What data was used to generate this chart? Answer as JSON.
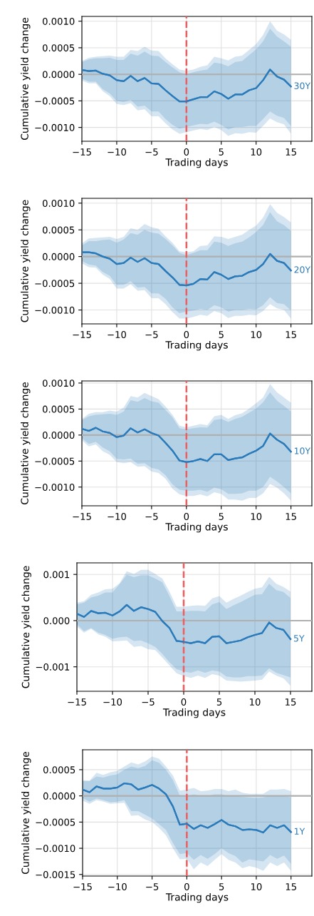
{
  "chart_data": [
    {
      "type": "line",
      "xlabel": "Trading days",
      "ylabel": "Cumulative yield change",
      "x": [
        -15,
        -14,
        -13,
        -12,
        -11,
        -10,
        -9,
        -8,
        -7,
        -6,
        -5,
        -4,
        -3,
        -2,
        -1,
        0,
        1,
        2,
        3,
        4,
        5,
        6,
        7,
        8,
        9,
        10,
        11,
        12,
        13,
        14,
        15
      ],
      "xlim": [
        -15,
        18
      ],
      "xticks": [
        {
          "value": -15,
          "label": "−15"
        },
        {
          "value": -10,
          "label": "−10"
        },
        {
          "value": -5,
          "label": "−5"
        },
        0,
        5,
        10,
        15
      ],
      "ylim": [
        -0.00126,
        0.00109
      ],
      "yticks": [
        {
          "value": -0.001,
          "label": "−0.0010"
        },
        {
          "value": -0.0005,
          "label": "−0.0005"
        },
        {
          "value": 0,
          "label": "0.0000"
        },
        {
          "value": 0.0005,
          "label": "0.0005"
        },
        {
          "value": 0.001,
          "label": "0.0010"
        }
      ],
      "grid": true,
      "ref_lines": [
        {
          "axis": "y",
          "value": 0,
          "color": "#b0b0b0",
          "line_style": "solid"
        },
        {
          "axis": "x",
          "value": 0,
          "color": "#f25c5c",
          "line_style": "dashed"
        }
      ],
      "series": [
        {
          "type": "line",
          "color": "#2b7bba",
          "lower": [
            -0.00012,
            -0.00017,
            -0.00017,
            -0.00032,
            -0.00041,
            -0.00056,
            -0.00058,
            -0.00054,
            -0.00068,
            -0.00066,
            -0.00079,
            -0.00079,
            -0.00092,
            -0.00104,
            -0.00112,
            -0.00109,
            -0.00106,
            -0.00103,
            -0.00105,
            -0.00099,
            -0.00105,
            -0.00116,
            -0.00111,
            -0.00112,
            -0.00109,
            -0.0011,
            -0.00097,
            -0.00083,
            -0.0009,
            -0.00094,
            -0.00112
          ],
          "upper": [
            0.00025,
            0.00031,
            0.00033,
            0.00034,
            0.00035,
            0.00033,
            0.00033,
            0.00046,
            0.00044,
            0.00052,
            0.00045,
            0.00044,
            0.0003,
            0.00019,
            9e-05,
            7e-05,
            9e-05,
            0.00014,
            0.00017,
            0.00033,
            0.0003,
            0.00026,
            0.00033,
            0.00035,
            0.00046,
            0.00057,
            0.00074,
            0.001,
            0.00082,
            0.00075,
            0.00065
          ],
          "values": [
            8e-05,
            6e-05,
            7e-05,
            1e-05,
            -2e-05,
            -0.00011,
            -0.00013,
            -3e-05,
            -0.00013,
            -7e-05,
            -0.00017,
            -0.00018,
            -0.0003,
            -0.00041,
            -0.00051,
            -0.00051,
            -0.00047,
            -0.00043,
            -0.00043,
            -0.00032,
            -0.00037,
            -0.00046,
            -0.00038,
            -0.00038,
            -0.0003,
            -0.00026,
            -0.00011,
            9e-05,
            -4e-05,
            -0.0001,
            -0.00023
          ]
        },
        {
          "type": "line",
          "name": "30Y",
          "color": "#2b7bba",
          "lower": [
            -8e-05,
            -0.00014,
            -0.00014,
            -0.00028,
            -0.00036,
            -0.0005,
            -0.00052,
            -0.00048,
            -0.00061,
            -0.00059,
            -0.0007,
            -0.0007,
            -0.00084,
            -0.00095,
            -0.00102,
            -0.00099,
            -0.00096,
            -0.00093,
            -0.00094,
            -0.00089,
            -0.00095,
            -0.00104,
            -0.00099,
            -0.00099,
            -0.00097,
            -0.00097,
            -0.00084,
            -0.0007,
            -0.00078,
            -0.00082,
            -0.00097
          ],
          "upper": [
            0.00023,
            0.00028,
            0.0003,
            0.0003,
            0.00031,
            0.00027,
            0.00027,
            0.00039,
            0.00035,
            0.00043,
            0.00035,
            0.00034,
            0.00023,
            0.00013,
            4e-05,
            0.0,
            4e-05,
            7e-05,
            9e-05,
            0.00022,
            0.0002,
            0.00015,
            0.00023,
            0.00025,
            0.00036,
            0.00047,
            0.00062,
            0.00086,
            0.00071,
            0.00062,
            0.00052
          ],
          "values": [
            8e-05,
            6e-05,
            7e-05,
            1e-05,
            -2e-05,
            -0.00011,
            -0.00013,
            -3e-05,
            -0.00013,
            -7e-05,
            -0.00017,
            -0.00018,
            -0.0003,
            -0.00041,
            -0.00051,
            -0.00051,
            -0.00047,
            -0.00043,
            -0.00043,
            -0.00032,
            -0.00037,
            -0.00046,
            -0.00038,
            -0.00038,
            -0.0003,
            -0.00026,
            -0.00011,
            9e-05,
            -4e-05,
            -0.0001,
            -0.00023
          ]
        }
      ]
    },
    {
      "type": "line",
      "xlabel": "Trading days",
      "ylabel": "Cumulative yield change",
      "x": [
        -15,
        -14,
        -13,
        -12,
        -11,
        -10,
        -9,
        -8,
        -7,
        -6,
        -5,
        -4,
        -3,
        -2,
        -1,
        0,
        1,
        2,
        3,
        4,
        5,
        6,
        7,
        8,
        9,
        10,
        11,
        12,
        13,
        14,
        15
      ],
      "xlim": [
        -15,
        18
      ],
      "xticks": [
        {
          "value": -15,
          "label": "−15"
        },
        {
          "value": -10,
          "label": "−10"
        },
        {
          "value": -5,
          "label": "−5"
        },
        0,
        5,
        10,
        15
      ],
      "ylim": [
        -0.00126,
        0.00109
      ],
      "yticks": [
        {
          "value": -0.001,
          "label": "−0.0010"
        },
        {
          "value": -0.0005,
          "label": "−0.0005"
        },
        {
          "value": 0,
          "label": "0.0000"
        },
        {
          "value": 0.0005,
          "label": "0.0005"
        },
        {
          "value": 0.001,
          "label": "0.0010"
        }
      ],
      "grid": true,
      "ref_lines": [
        {
          "axis": "y",
          "value": 0,
          "color": "#b0b0b0",
          "line_style": "solid"
        },
        {
          "axis": "x",
          "value": 0,
          "color": "#f25c5c",
          "line_style": "dashed"
        }
      ],
      "series": [
        {
          "type": "line",
          "color": "#2b7bba",
          "lower": [
            -0.00013,
            -0.0002,
            -0.00021,
            -0.00034,
            -0.00042,
            -0.0006,
            -0.0006,
            -0.00052,
            -0.00064,
            -0.00063,
            -0.00078,
            -0.00078,
            -0.00089,
            -0.00104,
            -0.00116,
            -0.00116,
            -0.00113,
            -0.00109,
            -0.00111,
            -0.00102,
            -0.00106,
            -0.00115,
            -0.00111,
            -0.00111,
            -0.00109,
            -0.0011,
            -0.00102,
            -0.00089,
            -0.00097,
            -0.001,
            -0.00116
          ],
          "upper": [
            0.00025,
            0.00034,
            0.00035,
            0.00036,
            0.00037,
            0.00033,
            0.00037,
            0.00053,
            0.0005,
            0.00061,
            0.00055,
            0.00052,
            0.00038,
            0.00026,
            0.0001,
            8e-05,
            0.0001,
            0.0002,
            0.00021,
            0.00038,
            0.00037,
            0.00033,
            0.00037,
            0.00041,
            0.0005,
            0.00058,
            0.00073,
            0.00098,
            0.00082,
            0.00074,
            0.00064
          ],
          "values": [
            8e-05,
            8e-05,
            6e-05,
            0.0,
            -4e-05,
            -0.00014,
            -0.00012,
            -2e-05,
            -0.0001,
            -3e-05,
            -0.00012,
            -0.00014,
            -0.00027,
            -0.00039,
            -0.00053,
            -0.00054,
            -0.00051,
            -0.00042,
            -0.00043,
            -0.00029,
            -0.00034,
            -0.00042,
            -0.00037,
            -0.00036,
            -0.00029,
            -0.00025,
            -0.00014,
            5e-05,
            -8e-05,
            -0.00012,
            -0.00026
          ]
        },
        {
          "type": "line",
          "name": "20Y",
          "color": "#2b7bba",
          "lower": [
            -8e-05,
            -0.00015,
            -0.00017,
            -0.00029,
            -0.00036,
            -0.00053,
            -0.00053,
            -0.00046,
            -0.00058,
            -0.00057,
            -0.00069,
            -0.00069,
            -0.00079,
            -0.00095,
            -0.00106,
            -0.00103,
            -0.00101,
            -0.00098,
            -0.001,
            -0.00091,
            -0.00095,
            -0.00103,
            -0.001,
            -0.001,
            -0.00098,
            -0.00099,
            -0.00091,
            -0.00076,
            -0.00087,
            -0.00089,
            -0.00101
          ],
          "upper": [
            0.00021,
            0.00029,
            0.00029,
            0.00031,
            0.00032,
            0.00026,
            0.00032,
            0.00044,
            0.00041,
            0.0005,
            0.00045,
            0.00043,
            0.00033,
            0.00021,
            7e-05,
            3e-05,
            7e-05,
            0.00012,
            0.00012,
            0.00028,
            0.00026,
            0.0002,
            0.00025,
            0.00028,
            0.00036,
            0.00046,
            0.00059,
            0.00083,
            0.00066,
            0.00059,
            0.00048
          ],
          "values": [
            8e-05,
            8e-05,
            6e-05,
            0.0,
            -4e-05,
            -0.00014,
            -0.00012,
            -2e-05,
            -0.0001,
            -3e-05,
            -0.00012,
            -0.00014,
            -0.00027,
            -0.00039,
            -0.00053,
            -0.00054,
            -0.00051,
            -0.00042,
            -0.00043,
            -0.00029,
            -0.00034,
            -0.00042,
            -0.00037,
            -0.00036,
            -0.00029,
            -0.00025,
            -0.00014,
            5e-05,
            -8e-05,
            -0.00012,
            -0.00026
          ]
        }
      ]
    },
    {
      "type": "line",
      "xlabel": "Trading days",
      "ylabel": "Cumulative yield change",
      "x": [
        -15,
        -14,
        -13,
        -12,
        -11,
        -10,
        -9,
        -8,
        -7,
        -6,
        -5,
        -4,
        -3,
        -2,
        -1,
        0,
        1,
        2,
        3,
        4,
        5,
        6,
        7,
        8,
        9,
        10,
        11,
        12,
        13,
        14,
        15
      ],
      "xlim": [
        -15,
        18
      ],
      "xticks": [
        {
          "value": -15,
          "label": "−15"
        },
        {
          "value": -10,
          "label": "−10"
        },
        {
          "value": -5,
          "label": "−5"
        },
        0,
        5,
        10,
        15
      ],
      "ylim": [
        -0.00136,
        0.00104
      ],
      "yticks": [
        {
          "value": -0.001,
          "label": "−0.0010"
        },
        {
          "value": -0.0005,
          "label": "−0.0005"
        },
        {
          "value": 0,
          "label": "0.0000"
        },
        {
          "value": 0.0005,
          "label": "0.0005"
        },
        {
          "value": 0.001,
          "label": "0.0010"
        }
      ],
      "grid": true,
      "ref_lines": [
        {
          "axis": "y",
          "value": 0,
          "color": "#b0b0b0",
          "line_style": "solid"
        },
        {
          "axis": "x",
          "value": 0,
          "color": "#f25c5c",
          "line_style": "dashed"
        }
      ],
      "series": [
        {
          "type": "line",
          "color": "#2b7bba",
          "lower": [
            -0.0001,
            -0.00022,
            -0.00018,
            -0.00031,
            -0.00038,
            -0.00052,
            -0.00054,
            -0.00052,
            -0.00061,
            -0.0006,
            -0.0007,
            -0.00073,
            -0.00084,
            -0.00103,
            -0.00114,
            -0.00117,
            -0.00117,
            -0.00114,
            -0.00118,
            -0.0011,
            -0.00113,
            -0.00124,
            -0.00124,
            -0.00126,
            -0.00121,
            -0.00121,
            -0.00112,
            -0.00094,
            -0.00101,
            -0.00112,
            -0.00126
          ],
          "upper": [
            0.00031,
            0.00041,
            0.00044,
            0.00044,
            0.00047,
            0.00045,
            0.00053,
            0.00075,
            0.00072,
            0.00081,
            0.00075,
            0.00069,
            0.00055,
            0.00039,
            0.00018,
            0.00015,
            0.00018,
            0.00021,
            0.00019,
            0.00036,
            0.00039,
            0.00031,
            0.00038,
            0.00042,
            0.00051,
            0.00061,
            0.00072,
            0.00098,
            0.00082,
            0.00072,
            0.00062
          ],
          "values": [
            0.00012,
            8e-05,
            0.00014,
            7e-05,
            4e-05,
            -4e-05,
            -1e-05,
            0.00013,
            5e-05,
            0.00011,
            4e-05,
            -1e-05,
            -0.00015,
            -0.0003,
            -0.00049,
            -0.00052,
            -0.0005,
            -0.00046,
            -0.0005,
            -0.00037,
            -0.00037,
            -0.00048,
            -0.00045,
            -0.00043,
            -0.00036,
            -0.0003,
            -0.00021,
            3e-05,
            -9e-05,
            -0.00017,
            -0.00032
          ]
        },
        {
          "type": "line",
          "name": "10Y",
          "color": "#2b7bba",
          "lower": [
            -6e-05,
            -0.00017,
            -0.00013,
            -0.00024,
            -0.00031,
            -0.00046,
            -0.00047,
            -0.00045,
            -0.00055,
            -0.00054,
            -0.00063,
            -0.00066,
            -0.00077,
            -0.00095,
            -0.00105,
            -0.00107,
            -0.00107,
            -0.00105,
            -0.00109,
            -0.00101,
            -0.00104,
            -0.00113,
            -0.00113,
            -0.00112,
            -0.00107,
            -0.00107,
            -0.001,
            -0.0008,
            -0.00089,
            -0.001,
            -0.00112
          ],
          "upper": [
            0.00029,
            0.00036,
            0.00039,
            0.0004,
            0.00041,
            0.00039,
            0.00045,
            0.00067,
            0.00064,
            0.00071,
            0.00065,
            0.00062,
            0.00048,
            0.00034,
            0.00013,
            0.00011,
            0.00013,
            0.00015,
            0.00014,
            0.00029,
            0.00031,
            0.00025,
            0.00031,
            0.00035,
            0.00043,
            0.00051,
            0.00063,
            0.00082,
            0.00066,
            0.00056,
            0.00045
          ],
          "values": [
            0.00012,
            8e-05,
            0.00014,
            7e-05,
            4e-05,
            -4e-05,
            -1e-05,
            0.00013,
            5e-05,
            0.00011,
            4e-05,
            -1e-05,
            -0.00015,
            -0.0003,
            -0.00049,
            -0.00052,
            -0.0005,
            -0.00046,
            -0.0005,
            -0.00037,
            -0.00037,
            -0.00048,
            -0.00045,
            -0.00043,
            -0.00036,
            -0.0003,
            -0.00021,
            3e-05,
            -9e-05,
            -0.00017,
            -0.00032
          ]
        }
      ]
    },
    {
      "type": "line",
      "xlabel": "Trading days",
      "ylabel": "Cumulative yield change",
      "x": [
        -15,
        -14,
        -13,
        -12,
        -11,
        -10,
        -9,
        -8,
        -7,
        -6,
        -5,
        -4,
        -3,
        -2,
        -1,
        0,
        1,
        2,
        3,
        4,
        5,
        6,
        7,
        8,
        9,
        10,
        11,
        12,
        13,
        14,
        15
      ],
      "xlim": [
        -15,
        18
      ],
      "xticks": [
        {
          "value": -15,
          "label": "−15"
        },
        {
          "value": -10,
          "label": "−10"
        },
        {
          "value": -5,
          "label": "−5"
        },
        0,
        5,
        10,
        15
      ],
      "ylim": [
        -0.00153,
        0.00125
      ],
      "yticks": [
        {
          "value": -0.001,
          "label": "−0.001"
        },
        {
          "value": 0,
          "label": "0.000"
        },
        {
          "value": 0.001,
          "label": "0.001"
        }
      ],
      "grid": true,
      "ref_lines": [
        {
          "axis": "y",
          "value": 0,
          "color": "#b0b0b0",
          "line_style": "solid"
        },
        {
          "axis": "x",
          "value": 0,
          "color": "#f25c5c",
          "line_style": "dashed"
        }
      ],
      "series": [
        {
          "type": "line",
          "color": "#2b7bba",
          "lower": [
            -0.00013,
            -0.00026,
            -0.00018,
            -0.0003,
            -0.00035,
            -0.00045,
            -0.00044,
            -0.00043,
            -0.00057,
            -0.00055,
            -0.00062,
            -0.00064,
            -0.0008,
            -0.00097,
            -0.00114,
            -0.0012,
            -0.00124,
            -0.00119,
            -0.00124,
            -0.00116,
            -0.00119,
            -0.0013,
            -0.00131,
            -0.00132,
            -0.00131,
            -0.0013,
            -0.00128,
            -0.0011,
            -0.00119,
            -0.00125,
            -0.00141
          ],
          "upper": [
            0.00039,
            0.00042,
            0.00056,
            0.00061,
            0.00068,
            0.00069,
            0.00081,
            0.00107,
            0.00101,
            0.0011,
            0.0011,
            0.00101,
            0.00091,
            0.00063,
            0.0003,
            0.0003,
            0.00032,
            0.00033,
            0.00032,
            0.00048,
            0.00053,
            0.00039,
            0.00047,
            0.00054,
            0.00062,
            0.00069,
            0.00072,
            0.00095,
            0.0008,
            0.00073,
            0.00063
          ],
          "values": [
            0.00015,
            8e-05,
            0.00021,
            0.00016,
            0.00017,
            0.00011,
            0.0002,
            0.00034,
            0.00021,
            0.00029,
            0.00025,
            0.00019,
            -1e-05,
            -0.00016,
            -0.00044,
            -0.00046,
            -0.00049,
            -0.00045,
            -0.00049,
            -0.00035,
            -0.00034,
            -0.00049,
            -0.00046,
            -0.00043,
            -0.00036,
            -0.00031,
            -0.00027,
            -4e-05,
            -0.00016,
            -0.0002,
            -0.0004
          ]
        },
        {
          "type": "line",
          "name": "5Y",
          "color": "#2b7bba",
          "lower": [
            -8e-05,
            -0.00023,
            -0.00016,
            -0.00026,
            -0.00031,
            -0.00039,
            -0.00036,
            -0.00035,
            -0.00044,
            -0.00043,
            -0.00049,
            -0.00057,
            -0.00072,
            -0.0009,
            -0.00105,
            -0.0011,
            -0.00113,
            -0.00108,
            -0.00113,
            -0.00108,
            -0.0011,
            -0.00121,
            -0.00123,
            -0.00123,
            -0.0012,
            -0.0012,
            -0.00119,
            -0.00103,
            -0.00113,
            -0.00118,
            -0.00123
          ],
          "upper": [
            0.00035,
            0.00039,
            0.0005,
            0.00054,
            0.00061,
            0.00061,
            0.00079,
            0.00099,
            0.00094,
            0.00098,
            0.00098,
            0.00091,
            0.00083,
            0.00053,
            0.0002,
            0.0002,
            0.00021,
            0.00021,
            0.0002,
            0.00035,
            0.0004,
            0.00025,
            0.00033,
            0.0004,
            0.00048,
            0.00056,
            0.00057,
            0.0008,
            0.00066,
            0.00062,
            0.00049
          ],
          "values": [
            0.00015,
            8e-05,
            0.00021,
            0.00016,
            0.00017,
            0.00011,
            0.0002,
            0.00034,
            0.00021,
            0.00029,
            0.00025,
            0.00019,
            -1e-05,
            -0.00016,
            -0.00044,
            -0.00046,
            -0.00049,
            -0.00045,
            -0.00049,
            -0.00035,
            -0.00034,
            -0.00049,
            -0.00046,
            -0.00043,
            -0.00036,
            -0.00031,
            -0.00027,
            -4e-05,
            -0.00016,
            -0.0002,
            -0.0004
          ]
        }
      ]
    },
    {
      "type": "line",
      "xlabel": "Trading days",
      "ylabel": "Cumulative yield change",
      "x": [
        -15,
        -14,
        -13,
        -12,
        -11,
        -10,
        -9,
        -8,
        -7,
        -6,
        -5,
        -4,
        -3,
        -2,
        -1,
        0,
        1,
        2,
        3,
        4,
        5,
        6,
        7,
        8,
        9,
        10,
        11,
        12,
        13,
        14,
        15
      ],
      "xlim": [
        -15,
        18
      ],
      "xticks": [
        {
          "value": -15,
          "label": "−15"
        },
        {
          "value": -10,
          "label": "−10"
        },
        {
          "value": -5,
          "label": "−5"
        },
        0,
        5,
        10,
        15
      ],
      "ylim": [
        -0.00153,
        0.00088
      ],
      "yticks": [
        {
          "value": -0.0015,
          "label": "−0.0015"
        },
        {
          "value": -0.001,
          "label": "−0.0010"
        },
        {
          "value": -0.0005,
          "label": "−0.0005"
        },
        {
          "value": 0,
          "label": "0.0000"
        },
        {
          "value": 0.0005,
          "label": "0.0005"
        }
      ],
      "grid": true,
      "ref_lines": [
        {
          "axis": "y",
          "value": 0,
          "color": "#b0b0b0",
          "line_style": "solid"
        },
        {
          "axis": "x",
          "value": 0,
          "color": "#f25c5c",
          "line_style": "dashed"
        }
      ],
      "series": [
        {
          "type": "line",
          "color": "#2b7bba",
          "lower": [
            -9e-05,
            -0.00015,
            -8e-05,
            -0.00011,
            -0.00015,
            -0.00014,
            -0.00013,
            -0.00038,
            -0.00037,
            -0.00045,
            -0.0005,
            -0.00061,
            -0.00075,
            -0.001,
            -0.00121,
            -0.0012,
            -0.0014,
            -0.00127,
            -0.00134,
            -0.00122,
            -0.00111,
            -0.00122,
            -0.00127,
            -0.00138,
            -0.00134,
            -0.00137,
            -0.00143,
            -0.00127,
            -0.00134,
            -0.00127,
            -0.00143
          ],
          "upper": [
            0.0003,
            0.00029,
            0.00044,
            0.0004,
            0.00045,
            0.00048,
            0.00056,
            0.00064,
            0.0006,
            0.00066,
            0.00075,
            0.00071,
            0.00056,
            0.00039,
            0.0001,
            0.00012,
            0.00015,
            9e-05,
            0.0001,
            0.00013,
            0.00013,
            9e-05,
            0.00012,
            6e-05,
            4e-05,
            4e-05,
            4e-05,
            0.00012,
            0.00012,
            0.00013,
            9e-05
          ],
          "values": [
            0.00012,
            7e-05,
            0.00018,
            0.00014,
            0.00014,
            0.00016,
            0.00024,
            0.00022,
            0.00012,
            0.00016,
            0.00021,
            0.00014,
            3e-05,
            -0.0002,
            -0.00055,
            -0.00053,
            -0.00063,
            -0.00056,
            -0.00061,
            -0.00054,
            -0.00046,
            -0.00055,
            -0.00058,
            -0.00065,
            -0.00064,
            -0.00065,
            -0.0007,
            -0.00056,
            -0.00061,
            -0.00056,
            -0.00069
          ]
        },
        {
          "type": "line",
          "name": "1Y",
          "color": "#2b7bba",
          "lower": [
            -4e-05,
            -0.00011,
            -5e-05,
            -8e-05,
            -0.00012,
            -0.00011,
            -8e-05,
            -0.00029,
            -0.00029,
            -0.00036,
            -0.00043,
            -0.00054,
            -0.00065,
            -0.0009,
            -0.00111,
            -0.00109,
            -0.00122,
            -0.00113,
            -0.0012,
            -0.00111,
            -0.001,
            -0.00109,
            -0.00115,
            -0.00127,
            -0.00121,
            -0.00123,
            -0.00125,
            -0.00113,
            -0.0012,
            -0.00114,
            -0.0013
          ],
          "upper": [
            0.00028,
            0.00028,
            0.00037,
            0.00035,
            0.00039,
            0.00041,
            0.0005,
            0.00056,
            0.00053,
            0.00057,
            0.00068,
            0.00063,
            0.0005,
            0.0003,
            0.0,
            0.0,
            3e-05,
            0.0,
            0.0,
            3e-05,
            3e-05,
            0.0,
            0.0,
            -2e-05,
            -3e-05,
            -4e-05,
            -3e-05,
            1e-05,
            0.0,
            0.0,
            -3e-05
          ],
          "values": [
            0.00012,
            7e-05,
            0.00018,
            0.00014,
            0.00014,
            0.00016,
            0.00024,
            0.00022,
            0.00012,
            0.00016,
            0.00021,
            0.00014,
            3e-05,
            -0.0002,
            -0.00055,
            -0.00053,
            -0.00063,
            -0.00056,
            -0.00061,
            -0.00054,
            -0.00046,
            -0.00055,
            -0.00058,
            -0.00065,
            -0.00064,
            -0.00065,
            -0.0007,
            -0.00056,
            -0.00061,
            -0.00056,
            -0.00069
          ]
        }
      ]
    }
  ]
}
